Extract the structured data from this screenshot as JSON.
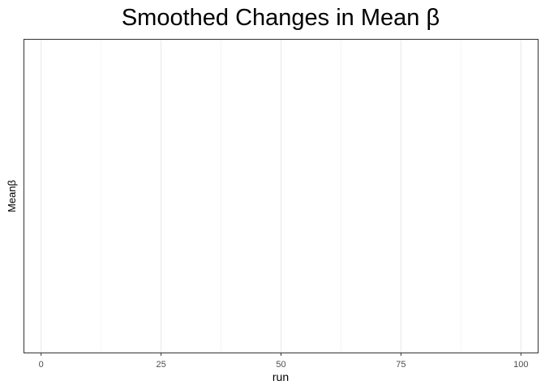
{
  "chart_data": {
    "type": "line",
    "title": "Smoothed Changes in Mean β",
    "xlabel": "run",
    "ylabel": "Meanβ",
    "x_ticks": [
      0,
      25,
      50,
      75,
      100
    ],
    "x_tick_labels": [
      "0",
      "25",
      "50",
      "75",
      "100"
    ],
    "x_minor_ticks": [
      12.5,
      37.5,
      62.5,
      87.5
    ],
    "xlim": [
      -3.5,
      103.5
    ],
    "series": [],
    "grid": true,
    "legend": "none",
    "colors": {
      "background": "#ffffff",
      "panel_border": "#333333",
      "grid_major": "#e8e8e8",
      "grid_minor": "#f2f2f2",
      "text": "#000000",
      "tick_text": "#4d4d4d"
    }
  }
}
